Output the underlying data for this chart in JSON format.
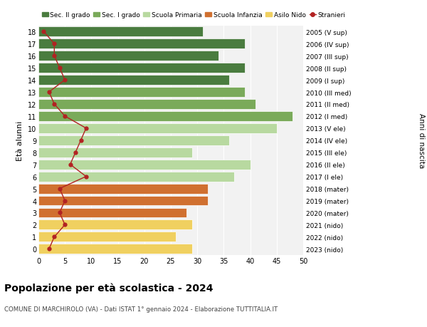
{
  "ages": [
    18,
    17,
    16,
    15,
    14,
    13,
    12,
    11,
    10,
    9,
    8,
    7,
    6,
    5,
    4,
    3,
    2,
    1,
    0
  ],
  "years": [
    "2005 (V sup)",
    "2006 (IV sup)",
    "2007 (III sup)",
    "2008 (II sup)",
    "2009 (I sup)",
    "2010 (III med)",
    "2011 (II med)",
    "2012 (I med)",
    "2013 (V ele)",
    "2014 (IV ele)",
    "2015 (III ele)",
    "2016 (II ele)",
    "2017 (I ele)",
    "2018 (mater)",
    "2019 (mater)",
    "2020 (mater)",
    "2021 (nido)",
    "2022 (nido)",
    "2023 (nido)"
  ],
  "bar_values": [
    31,
    39,
    34,
    39,
    36,
    39,
    41,
    48,
    45,
    36,
    29,
    40,
    37,
    32,
    32,
    28,
    29,
    26,
    29
  ],
  "stranieri": [
    1,
    3,
    3,
    4,
    5,
    2,
    3,
    5,
    9,
    8,
    7,
    6,
    9,
    4,
    5,
    4,
    5,
    3,
    2
  ],
  "bar_colors": [
    "#4a7c3f",
    "#4a7c3f",
    "#4a7c3f",
    "#4a7c3f",
    "#4a7c3f",
    "#7aaa5a",
    "#7aaa5a",
    "#7aaa5a",
    "#b8d9a0",
    "#b8d9a0",
    "#b8d9a0",
    "#b8d9a0",
    "#b8d9a0",
    "#d07030",
    "#d07030",
    "#d07030",
    "#f0d060",
    "#f0d060",
    "#f0d060"
  ],
  "legend_labels": [
    "Sec. II grado",
    "Sec. I grado",
    "Scuola Primaria",
    "Scuola Infanzia",
    "Asilo Nido",
    "Stranieri"
  ],
  "legend_colors": [
    "#4a7c3f",
    "#7aaa5a",
    "#b8d9a0",
    "#d07030",
    "#f0d060",
    "#b22222"
  ],
  "stranieri_color": "#b22222",
  "title": "Popolazione per età scolastica - 2024",
  "subtitle": "COMUNE DI MARCHIROLO (VA) - Dati ISTAT 1° gennaio 2024 - Elaborazione TUTTITALIA.IT",
  "ylabel_left": "Età alunni",
  "ylabel_right": "Anni di nascita",
  "xlim": [
    0,
    50
  ],
  "xticks": [
    0,
    5,
    10,
    15,
    20,
    25,
    30,
    35,
    40,
    45,
    50
  ],
  "bg_color": "#ffffff",
  "bar_bg_color": "#f2f2f2"
}
